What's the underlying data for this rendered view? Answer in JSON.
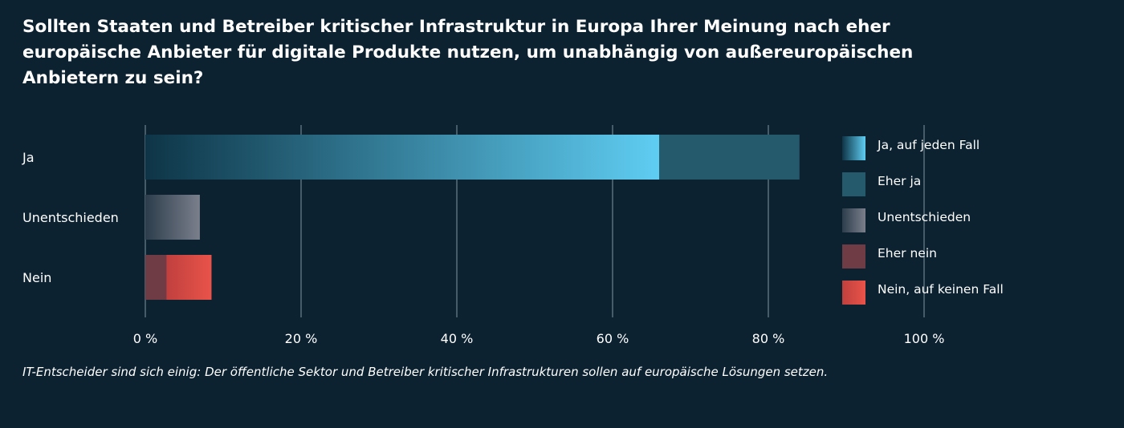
{
  "chart_data": {
    "type": "bar",
    "orientation": "horizontal",
    "stacked": true,
    "title": "Sollten Staaten und Betreiber kritischer Infrastruktur in Europa Ihrer Meinung nach eher europäische Anbieter für digitale Produkte nutzen, um unabhängig von außereuropäischen Anbietern zu sein?",
    "categories": [
      "Ja",
      "Unentschieden",
      "Nein"
    ],
    "series": [
      {
        "name": "Ja, auf jeden Fall",
        "values": [
          66,
          0,
          0
        ],
        "color": "#5fcdf2",
        "color_start": "#0e3547"
      },
      {
        "name": "Eher ja",
        "values": [
          18,
          0,
          0
        ],
        "color": "#245a6c"
      },
      {
        "name": "Unentschieden",
        "values": [
          0,
          7,
          0
        ],
        "color": "#7b7f8c",
        "color_start": "#2c3d4b"
      },
      {
        "name": "Eher nein",
        "values": [
          0,
          0,
          2.7
        ],
        "color": "#6f3c45"
      },
      {
        "name": "Nein, auf keinen Fall",
        "values": [
          0,
          0,
          5.8
        ],
        "color": "#e9534a",
        "color_start": "#c0403e"
      }
    ],
    "xlim": [
      0,
      100
    ],
    "xticks": [
      0,
      20,
      40,
      60,
      80,
      100
    ],
    "xtick_labels": [
      "0 %",
      "20 %",
      "40 %",
      "60 %",
      "80 %",
      "100 %"
    ],
    "xlabel": "",
    "ylabel": "",
    "grid": true,
    "legend_position": "right"
  },
  "caption": "IT-Entscheider sind sich einig: Der öffentliche Sektor und Betreiber kritischer Infrastrukturen sollen auf europäische Lösungen setzen."
}
